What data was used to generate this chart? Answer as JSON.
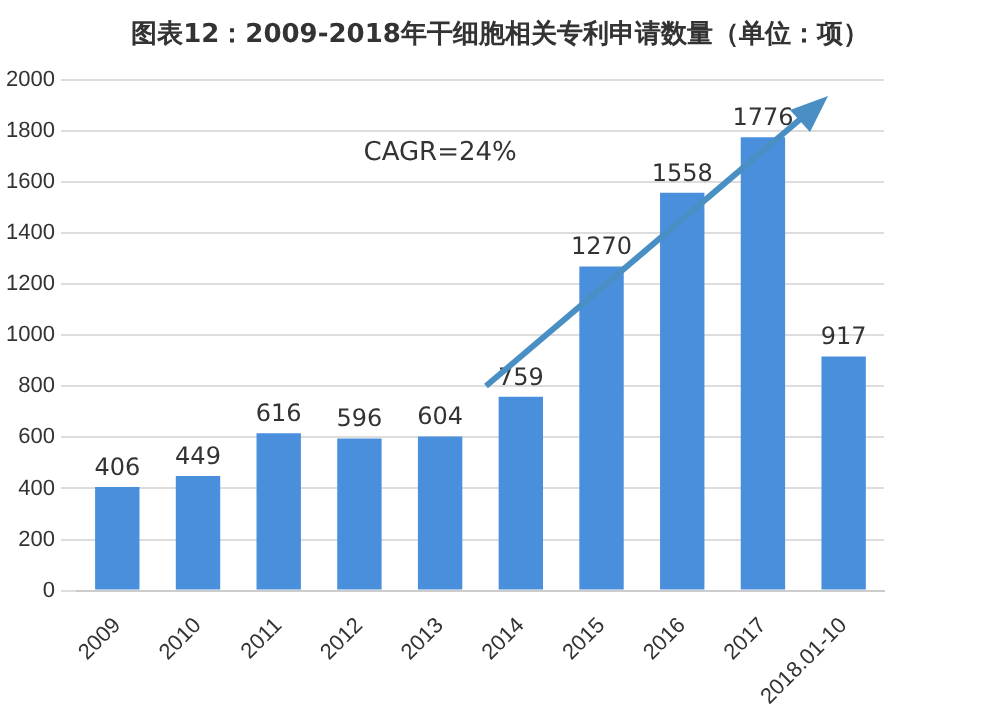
{
  "chart_data": {
    "type": "bar",
    "title": "图表12：2009-2018年干细胞相关专利申请数量（单位：项）",
    "categories": [
      "2009",
      "2010",
      "2011",
      "2012",
      "2013",
      "2014",
      "2015",
      "2016",
      "2017",
      "2018.01-10"
    ],
    "values": [
      406,
      449,
      616,
      596,
      604,
      759,
      1270,
      1558,
      1776,
      917
    ],
    "color": "#4a8fdc",
    "ylim": [
      0,
      2000
    ],
    "yticks": [
      0,
      200,
      400,
      600,
      800,
      1000,
      1200,
      1400,
      1600,
      1800,
      2000
    ],
    "grid": "y",
    "data_labels": true,
    "annotations": [
      "CAGR=24%"
    ]
  }
}
